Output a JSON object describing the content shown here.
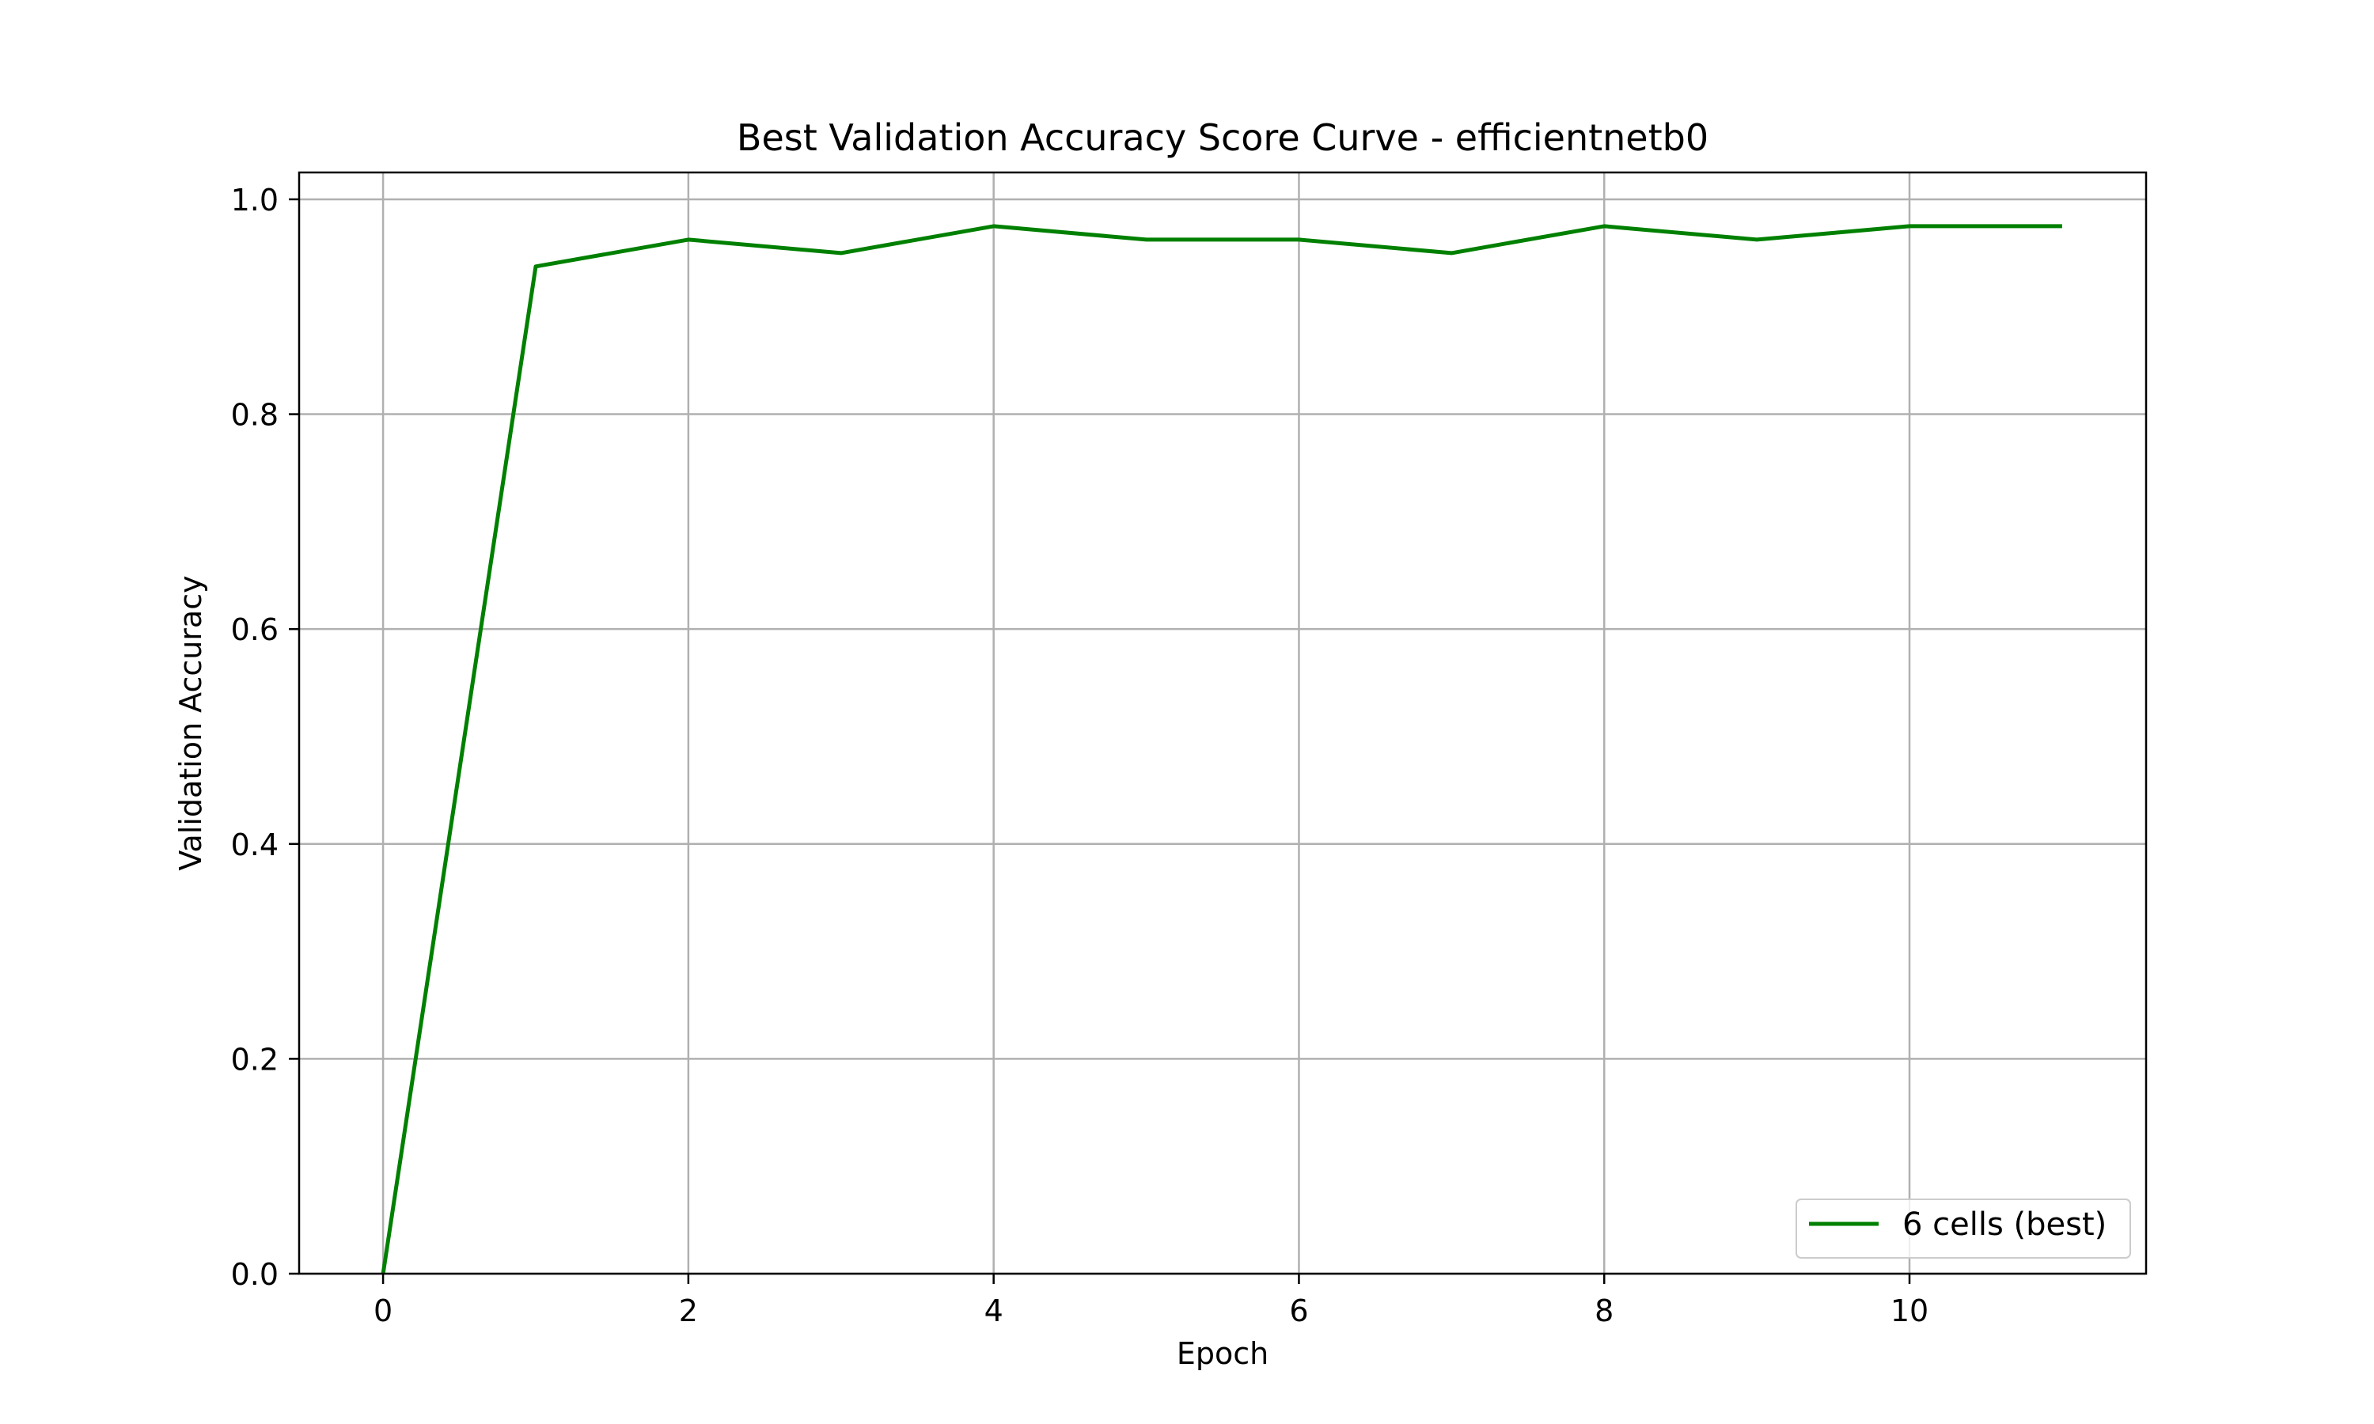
{
  "chart_data": {
    "type": "line",
    "title": "Best Validation Accuracy Score Curve - efficientnetb0",
    "xlabel": "Epoch",
    "ylabel": "Validation Accuracy",
    "xlim": [
      -0.55,
      11.55
    ],
    "ylim": [
      0.0,
      1.025
    ],
    "xticks": [
      0,
      2,
      4,
      6,
      8,
      10
    ],
    "xtick_labels": [
      "0",
      "2",
      "4",
      "6",
      "8",
      "10"
    ],
    "yticks": [
      0.0,
      0.2,
      0.4,
      0.6,
      0.8,
      1.0
    ],
    "ytick_labels": [
      "0.0",
      "0.2",
      "0.4",
      "0.6",
      "0.8",
      "1.0"
    ],
    "grid": true,
    "legend_position": "bottom-right",
    "series": [
      {
        "name": "6 cells (best)",
        "color": "#008000",
        "x": [
          0,
          1,
          2,
          3,
          4,
          5,
          6,
          7,
          8,
          9,
          10,
          11
        ],
        "y": [
          0.0,
          0.9375,
          0.9625,
          0.95,
          0.975,
          0.9625,
          0.9625,
          0.95,
          0.975,
          0.9625,
          0.975,
          0.975
        ]
      }
    ]
  }
}
